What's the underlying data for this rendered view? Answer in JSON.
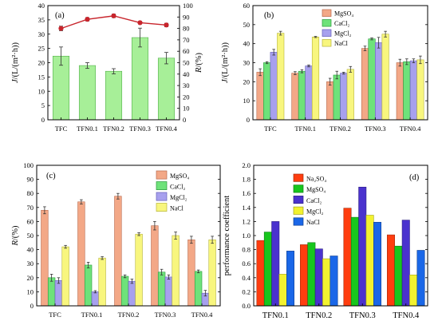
{
  "chart_data": [
    {
      "type": "bar",
      "panel_label": "(a)",
      "categories": [
        "TFC",
        "TFN0.1",
        "TFN0.2",
        "TFN0.3",
        "TFN0.4"
      ],
      "series": [
        {
          "values": [
            22.3,
            19.0,
            17.0,
            28.8,
            21.6
          ],
          "errors": [
            3.2,
            1.0,
            0.9,
            3.3,
            2.0
          ]
        },
        {
          "axis": "right",
          "type": "line",
          "values": [
            80,
            88,
            91,
            85,
            83
          ],
          "errors": [
            2.0,
            1.5,
            1.5,
            1.2,
            1.5
          ]
        }
      ],
      "ylabel": "J/(L/(m²·h))",
      "y2label": "R/(%)",
      "ylim": [
        0,
        40
      ],
      "yticks": [
        "0",
        "5",
        "10",
        "15",
        "20",
        "25",
        "30",
        "35",
        "40"
      ],
      "y2lim": [
        0,
        100
      ],
      "y2ticks": [
        "0",
        "10",
        "20",
        "30",
        "40",
        "50",
        "60",
        "70",
        "80",
        "90",
        "100"
      ],
      "colors": {
        "bar": "#a7ef98",
        "bar_edge": "#53b04a",
        "line": "#c8252c"
      }
    },
    {
      "type": "bar",
      "panel_label": "(b)",
      "categories": [
        "TFC",
        "TFN0.1",
        "TFN0.2",
        "TFN0.3",
        "TFN0.4"
      ],
      "series": [
        {
          "name": "MgSO₄",
          "values": [
            25.0,
            24.5,
            20.0,
            37.5,
            30.0
          ],
          "errors": [
            1.8,
            0.8,
            1.8,
            1.2,
            1.8
          ]
        },
        {
          "name": "CaCl₂",
          "values": [
            30.0,
            25.5,
            23.5,
            42.5,
            30.5
          ],
          "errors": [
            0.5,
            0.8,
            2.0,
            0.5,
            1.5
          ]
        },
        {
          "name": "MgCl₂",
          "values": [
            35.5,
            28.3,
            24.5,
            40.5,
            31.0
          ],
          "errors": [
            1.5,
            0.5,
            0.5,
            2.8,
            1.0
          ]
        },
        {
          "name": "NaCl",
          "values": [
            45.5,
            43.5,
            26.5,
            45.0,
            31.5
          ],
          "errors": [
            1.0,
            0.3,
            1.5,
            1.5,
            2.0
          ]
        }
      ],
      "ylabel": "J/(L/(m²·h))",
      "ylim": [
        0,
        60
      ],
      "yticks": [
        "0",
        "10",
        "20",
        "30",
        "40",
        "50",
        "60"
      ],
      "legend": "top-left",
      "colors": [
        "#f3a887",
        "#6ee27a",
        "#a7a0ee",
        "#f8f67e"
      ],
      "edges": [
        "#b86a4d",
        "#2b9a3c",
        "#6660b8",
        "#b7b53a"
      ]
    },
    {
      "type": "bar",
      "panel_label": "(c)",
      "categories": [
        "TFC",
        "TFN0.1",
        "TFN0.2",
        "TFN0.3",
        "TFN0.4"
      ],
      "series": [
        {
          "name": "MgSO₄",
          "values": [
            68,
            74,
            78,
            57,
            47
          ],
          "errors": [
            2.5,
            1.5,
            2.0,
            3.0,
            2.5
          ]
        },
        {
          "name": "CaCl₂",
          "values": [
            20,
            29,
            21,
            24,
            24.5
          ],
          "errors": [
            2.5,
            2.0,
            1.0,
            2.0,
            1.0
          ]
        },
        {
          "name": "MgCl₂",
          "values": [
            18,
            10,
            17.5,
            20.5,
            9
          ],
          "errors": [
            2.0,
            0.8,
            1.5,
            1.5,
            2.0
          ]
        },
        {
          "name": "NaCl",
          "values": [
            42,
            34,
            51,
            50,
            47
          ],
          "errors": [
            1.0,
            1.0,
            1.0,
            2.5,
            2.5
          ]
        }
      ],
      "ylabel": "R/(%)",
      "ylim": [
        0,
        100
      ],
      "yticks": [
        "0",
        "10",
        "20",
        "30",
        "40",
        "50",
        "60",
        "70",
        "80",
        "90",
        "100"
      ],
      "legend": "top-right",
      "colors": [
        "#f3a887",
        "#6ee27a",
        "#a7a0ee",
        "#f8f67e"
      ],
      "edges": [
        "#b86a4d",
        "#2b9a3c",
        "#6660b8",
        "#b7b53a"
      ]
    },
    {
      "type": "bar",
      "panel_label": "(d)",
      "categories": [
        "TFN0.1",
        "TFN0.2",
        "TFN0.3",
        "TFN0.4"
      ],
      "series": [
        {
          "name": "Na₂SO₄",
          "values": [
            0.93,
            0.87,
            1.39,
            1.01
          ]
        },
        {
          "name": "MgSO₄",
          "values": [
            1.05,
            0.9,
            1.26,
            0.85
          ]
        },
        {
          "name": "CaCl₂",
          "values": [
            1.2,
            0.81,
            1.69,
            1.22
          ]
        },
        {
          "name": "MgCl₂",
          "values": [
            0.45,
            0.67,
            1.29,
            0.44
          ]
        },
        {
          "name": "NaCl",
          "values": [
            0.78,
            0.71,
            1.19,
            0.79
          ]
        }
      ],
      "ylabel": "performance coefficient",
      "ylim": [
        0,
        2.0
      ],
      "yticks": [
        "0.0",
        "0.2",
        "0.4",
        "0.6",
        "0.8",
        "1.0",
        "1.2",
        "1.4",
        "1.6",
        "1.8",
        "2.0"
      ],
      "legend": "top-left",
      "colors": [
        "#ff3d0f",
        "#17c61d",
        "#4a32ce",
        "#f2f230",
        "#1a67e8"
      ],
      "edges": [
        "#a12a0b",
        "#0e7c12",
        "#2c1e82",
        "#a2a21d",
        "#0f3f90"
      ]
    }
  ]
}
